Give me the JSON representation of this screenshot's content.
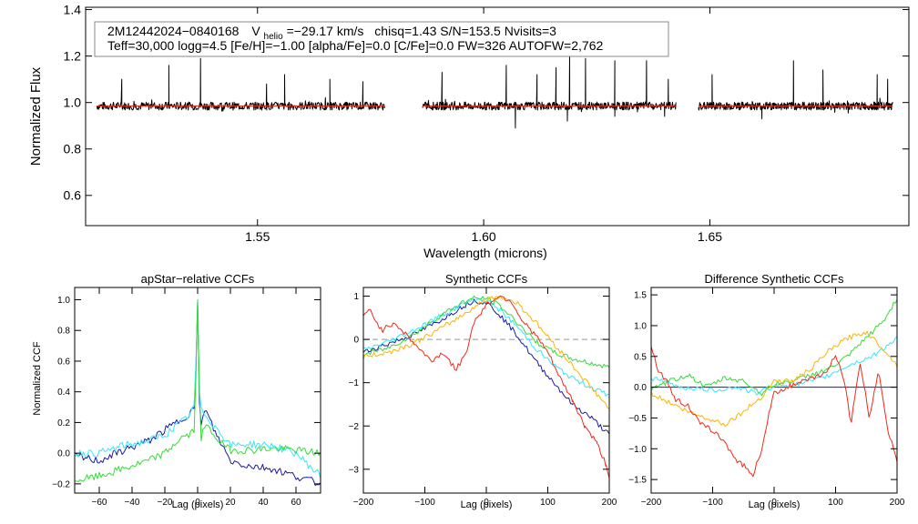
{
  "info": {
    "star_id": "2M12442024−0840168",
    "vhelio_symbol": "V",
    "vhelio_subscript": "helio",
    "vhelio_value": "=−29.17 km/s",
    "stats": "chisq=1.43  S/N=153.5  Nvisits=3",
    "params": "Teff=30,000 logg=4.5 [Fe/H]=−1.00 [alpha/Fe]=0.0 [C/Fe]=0.0 FW=326 AUTOFW=2,762"
  },
  "colors": {
    "axis": "#000000",
    "spectrum": "#000000",
    "model": "#e0301e",
    "zero_line": "#999999",
    "navy": "#1a1aa6",
    "cyan": "#33e6ff",
    "green": "#33dd33",
    "orange": "#ffb300",
    "red": "#ee2a1a"
  },
  "chart_data": [
    {
      "id": "spectrum",
      "type": "line",
      "title": "",
      "xlabel": "Wavelength (microns)",
      "ylabel": "Normalized Flux",
      "xlim": [
        1.512,
        1.694
      ],
      "ylim": [
        0.47,
        1.41
      ],
      "xticks": [
        1.55,
        1.6,
        1.65
      ],
      "xtick_labels": [
        "1.55",
        "1.60",
        "1.65"
      ],
      "yticks": [
        0.6,
        0.8,
        1.0,
        1.2,
        1.4
      ],
      "ytick_labels": [
        "0.6",
        "0.8",
        "1.0",
        "1.2",
        "1.4"
      ],
      "chips": [
        [
          1.5145,
          1.5781
        ],
        [
          1.5865,
          1.6425
        ],
        [
          1.6475,
          1.6904
        ]
      ],
      "continuum": 0.985,
      "model_level": 0.985,
      "emission_spikes": [
        {
          "x": 1.5304,
          "y": 1.16
        },
        {
          "x": 1.5374,
          "y": 1.19
        },
        {
          "x": 1.52,
          "y": 1.1
        },
        {
          "x": 1.556,
          "y": 1.12
        },
        {
          "x": 1.552,
          "y": 1.08
        },
        {
          "x": 1.566,
          "y": 1.1
        },
        {
          "x": 1.5733,
          "y": 1.09
        },
        {
          "x": 1.5908,
          "y": 1.13
        },
        {
          "x": 1.605,
          "y": 1.16
        },
        {
          "x": 1.6118,
          "y": 1.12
        },
        {
          "x": 1.616,
          "y": 1.15
        },
        {
          "x": 1.619,
          "y": 1.21
        },
        {
          "x": 1.6225,
          "y": 1.19
        },
        {
          "x": 1.629,
          "y": 1.18
        },
        {
          "x": 1.636,
          "y": 1.18
        },
        {
          "x": 1.6408,
          "y": 1.1
        },
        {
          "x": 1.6505,
          "y": 1.12
        },
        {
          "x": 1.6685,
          "y": 1.18
        },
        {
          "x": 1.675,
          "y": 1.14
        },
        {
          "x": 1.687,
          "y": 1.12
        },
        {
          "x": 1.6893,
          "y": 1.1
        }
      ],
      "absorption_spikes": [
        {
          "x": 1.607,
          "y": 0.89
        },
        {
          "x": 1.6185,
          "y": 0.92
        },
        {
          "x": 1.629,
          "y": 0.94
        },
        {
          "x": 1.64,
          "y": 0.94
        },
        {
          "x": 1.6615,
          "y": 0.93
        }
      ]
    },
    {
      "id": "apstar_ccf",
      "type": "line",
      "title": "apStar−relative CCFs",
      "xlabel": "Lag (pixels)",
      "ylabel": "Normalized CCF",
      "xlim": [
        -75,
        75
      ],
      "ylim": [
        -0.26,
        1.08
      ],
      "xticks": [
        -60,
        -40,
        -20,
        0,
        20,
        40,
        60
      ],
      "xtick_labels": [
        "−60",
        "−40",
        "−20",
        "0",
        "20",
        "40",
        "60"
      ],
      "yticks": [
        -0.2,
        0.0,
        0.2,
        0.4,
        0.6,
        0.8,
        1.0
      ],
      "ytick_labels": [
        "−0.2",
        "0.0",
        "0.2",
        "0.4",
        "0.6",
        "0.8",
        "1.0"
      ],
      "reference_line": null,
      "series": [
        {
          "name": "navy",
          "color": "navy",
          "x": [
            -75,
            -60,
            -45,
            -30,
            -20,
            -10,
            -5,
            -2,
            -1,
            0,
            1,
            2,
            5,
            10,
            15,
            20,
            30,
            45,
            60,
            75
          ],
          "y": [
            -0.02,
            -0.05,
            0.02,
            0.08,
            0.15,
            0.22,
            0.26,
            0.3,
            0.55,
            0.97,
            0.35,
            0.2,
            0.28,
            0.15,
            0.05,
            -0.05,
            -0.08,
            -0.1,
            -0.15,
            -0.2
          ]
        },
        {
          "name": "cyan",
          "color": "cyan",
          "x": [
            -75,
            -60,
            -45,
            -30,
            -20,
            -10,
            -5,
            -2,
            -1,
            0,
            1,
            2,
            5,
            10,
            15,
            20,
            30,
            45,
            60,
            75
          ],
          "y": [
            0.0,
            0.0,
            0.05,
            0.08,
            0.12,
            0.2,
            0.25,
            0.3,
            0.6,
            0.99,
            0.4,
            0.28,
            0.25,
            0.18,
            0.12,
            0.05,
            0.06,
            0.05,
            0.0,
            -0.15
          ]
        },
        {
          "name": "green",
          "color": "green",
          "x": [
            -75,
            -60,
            -45,
            -30,
            -20,
            -10,
            -5,
            -2,
            -1,
            0,
            1,
            2,
            5,
            10,
            15,
            20,
            30,
            45,
            60,
            75
          ],
          "y": [
            -0.18,
            -0.15,
            -0.1,
            -0.05,
            0.0,
            0.1,
            0.12,
            0.15,
            0.5,
            1.0,
            0.45,
            0.1,
            0.18,
            0.12,
            0.06,
            0.02,
            0.02,
            0.03,
            0.02,
            0.0
          ]
        }
      ]
    },
    {
      "id": "synthetic_ccf",
      "type": "line",
      "title": "Synthetic CCFs",
      "xlabel": "Lag (pixels)",
      "ylabel": "",
      "xlim": [
        -200,
        200
      ],
      "ylim": [
        -3.55,
        1.2
      ],
      "xticks": [
        -200,
        -100,
        0,
        100,
        200
      ],
      "xtick_labels": [
        "−200",
        "−100",
        "0",
        "100",
        "200"
      ],
      "yticks": [
        -3,
        -2,
        -1,
        0,
        1
      ],
      "ytick_labels": [
        "−3",
        "−2",
        "−1",
        "0",
        "1"
      ],
      "reference_line": 0,
      "series": [
        {
          "name": "navy",
          "color": "navy",
          "x": [
            -200,
            -160,
            -120,
            -80,
            -40,
            -20,
            0,
            20,
            50,
            80,
            110,
            140,
            170,
            200
          ],
          "y": [
            -0.3,
            -0.1,
            0.1,
            0.4,
            0.75,
            0.9,
            0.85,
            0.6,
            0.1,
            -0.5,
            -1.0,
            -1.5,
            -1.8,
            -2.2
          ]
        },
        {
          "name": "cyan",
          "color": "cyan",
          "x": [
            -200,
            -160,
            -120,
            -80,
            -40,
            -20,
            0,
            20,
            50,
            80,
            110,
            140,
            170,
            200
          ],
          "y": [
            -0.25,
            -0.05,
            0.2,
            0.5,
            0.8,
            0.92,
            0.9,
            0.7,
            0.3,
            -0.2,
            -0.6,
            -0.9,
            -1.1,
            -1.3
          ]
        },
        {
          "name": "green",
          "color": "green",
          "x": [
            -200,
            -160,
            -120,
            -80,
            -40,
            -20,
            0,
            20,
            50,
            80,
            110,
            140,
            170,
            200
          ],
          "y": [
            -0.35,
            -0.2,
            0.1,
            0.5,
            0.85,
            0.95,
            0.95,
            0.8,
            0.4,
            -0.05,
            -0.3,
            -0.45,
            -0.55,
            -0.65
          ]
        },
        {
          "name": "orange",
          "color": "orange",
          "x": [
            -200,
            -160,
            -120,
            -80,
            -40,
            -10,
            20,
            50,
            80,
            110,
            140,
            170,
            200
          ],
          "y": [
            -0.4,
            -0.3,
            -0.1,
            0.2,
            0.55,
            0.85,
            1.0,
            0.85,
            0.4,
            -0.1,
            -0.6,
            -1.1,
            -1.6
          ]
        },
        {
          "name": "red",
          "color": "red",
          "x": [
            -200,
            -190,
            -170,
            -150,
            -130,
            -110,
            -90,
            -70,
            -50,
            -35,
            -20,
            0,
            20,
            40,
            60,
            80,
            100,
            120,
            140,
            160,
            180,
            195,
            200
          ],
          "y": [
            0.5,
            0.7,
            0.2,
            0.4,
            0.1,
            -0.2,
            -0.5,
            -0.3,
            -0.7,
            -0.4,
            0.4,
            0.8,
            1.0,
            0.9,
            0.4,
            0.1,
            -0.3,
            -0.9,
            -1.4,
            -2.0,
            -2.4,
            -2.9,
            -3.2
          ]
        }
      ]
    },
    {
      "id": "diff_synthetic_ccf",
      "type": "line",
      "title": "Difference Synthetic CCFs",
      "xlabel": "Lag (pixels)",
      "ylabel": "",
      "xlim": [
        -200,
        200
      ],
      "ylim": [
        -1.72,
        1.62
      ],
      "xticks": [
        -200,
        -100,
        0,
        100,
        200
      ],
      "xtick_labels": [
        "−200",
        "−100",
        "0",
        "100",
        "200"
      ],
      "yticks": [
        -1.5,
        -1.0,
        -0.5,
        0.0,
        0.5,
        1.0,
        1.5
      ],
      "ytick_labels": [
        "−1.5",
        "−1.0",
        "−0.5",
        "0.0",
        "0.5",
        "1.0",
        "1.5"
      ],
      "reference_line": 0,
      "reference_color": "navy",
      "series": [
        {
          "name": "cyan",
          "color": "cyan",
          "x": [
            -200,
            -150,
            -100,
            -60,
            -30,
            0,
            40,
            80,
            120,
            160,
            200
          ],
          "y": [
            0.15,
            0.0,
            -0.05,
            0.0,
            -0.1,
            0.02,
            0.05,
            0.15,
            0.35,
            0.5,
            0.8
          ]
        },
        {
          "name": "green",
          "color": "green",
          "x": [
            -200,
            -170,
            -140,
            -110,
            -80,
            -50,
            -20,
            0,
            30,
            60,
            90,
            120,
            150,
            180,
            200
          ],
          "y": [
            -0.05,
            0.1,
            0.2,
            0.0,
            0.15,
            0.1,
            -0.1,
            0.05,
            0.1,
            0.2,
            0.3,
            0.5,
            0.8,
            1.1,
            1.45
          ]
        },
        {
          "name": "orange",
          "color": "orange",
          "x": [
            -200,
            -170,
            -140,
            -110,
            -80,
            -50,
            -20,
            0,
            30,
            60,
            90,
            120,
            150,
            180,
            200
          ],
          "y": [
            -0.1,
            -0.25,
            -0.4,
            -0.5,
            -0.6,
            -0.4,
            -0.15,
            0.1,
            0.1,
            0.3,
            0.6,
            0.8,
            0.9,
            0.6,
            0.35
          ]
        },
        {
          "name": "red",
          "color": "red",
          "x": [
            -200,
            -190,
            -175,
            -160,
            -140,
            -120,
            -100,
            -80,
            -60,
            -45,
            -35,
            -20,
            -10,
            0,
            20,
            50,
            80,
            100,
            115,
            125,
            140,
            155,
            170,
            185,
            200
          ],
          "y": [
            0.7,
            0.3,
            0.1,
            -0.2,
            -0.3,
            -0.6,
            -0.7,
            -0.9,
            -1.2,
            -1.3,
            -1.45,
            -1.0,
            -0.5,
            -0.1,
            0.0,
            0.1,
            0.2,
            0.5,
            0.1,
            -0.6,
            0.4,
            -0.5,
            0.3,
            -0.7,
            -1.2
          ]
        }
      ]
    }
  ]
}
